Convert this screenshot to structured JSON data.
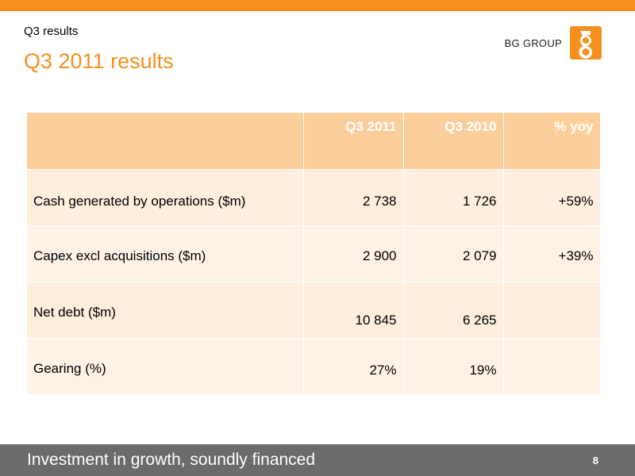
{
  "header": {
    "section": "Q3 results",
    "title": "Q3 2011 results",
    "logo_text": "BG GROUP"
  },
  "colors": {
    "accent": "#f5901e",
    "table_header": "#fbcf9c",
    "table_row": "#fef2e6",
    "footer": "#6b6b6b"
  },
  "table": {
    "columns": [
      "",
      "Q3 2011",
      "Q3 2010",
      "% yoy"
    ],
    "rows": [
      [
        "Cash generated by operations ($m)",
        "2 738",
        "1 726",
        "+59%"
      ],
      [
        "Capex excl acquisitions ($m)",
        "2 900",
        "2 079",
        "+39%"
      ],
      [
        "Net debt ($m)",
        "10 845",
        "6 265",
        ""
      ],
      [
        "Gearing (%)",
        "27%",
        "19%",
        ""
      ]
    ]
  },
  "footer": {
    "text": "Investment in growth, soundly financed",
    "page": "8"
  }
}
